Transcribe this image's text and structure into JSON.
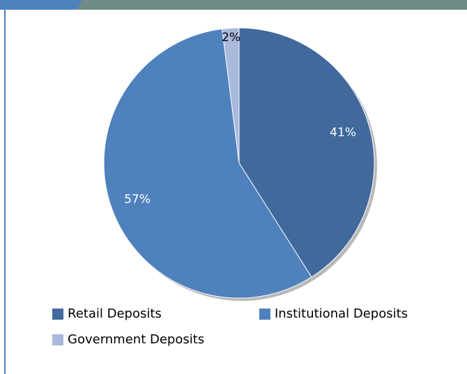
{
  "chart_data": {
    "type": "pie",
    "categories": [
      "Retail Deposits",
      "Institutional Deposits",
      "Government Deposits"
    ],
    "values": [
      41,
      57,
      2
    ],
    "value_labels": [
      "41%",
      "57%",
      "2%"
    ],
    "colors": [
      "#41699c",
      "#4f81bd",
      "#a9b9dc"
    ]
  }
}
